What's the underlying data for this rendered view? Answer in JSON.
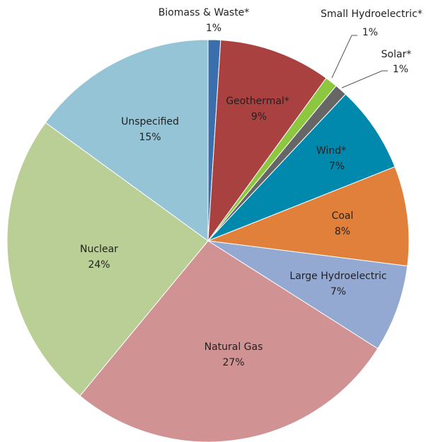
{
  "chart_data": {
    "type": "pie",
    "categories": [
      "Biomass & Waste*",
      "Geothermal*",
      "Small Hydroelectric*",
      "Solar*",
      "Wind*",
      "Coal",
      "Large Hydroelectric",
      "Natural Gas",
      "Nuclear",
      "Unspecified"
    ],
    "values": [
      1,
      9,
      1,
      1,
      7,
      8,
      7,
      27,
      24,
      15
    ],
    "value_labels": [
      "1%",
      "9%",
      "1%",
      "1%",
      "7%",
      "8%",
      "7%",
      "27%",
      "24%",
      "15%"
    ],
    "colors": [
      "#3a6fae",
      "#a8413f",
      "#8dc63f",
      "#666666",
      "#0088ad",
      "#e0803a",
      "#93a9d2",
      "#d09292",
      "#b9cf96",
      "#94c4d5"
    ]
  }
}
